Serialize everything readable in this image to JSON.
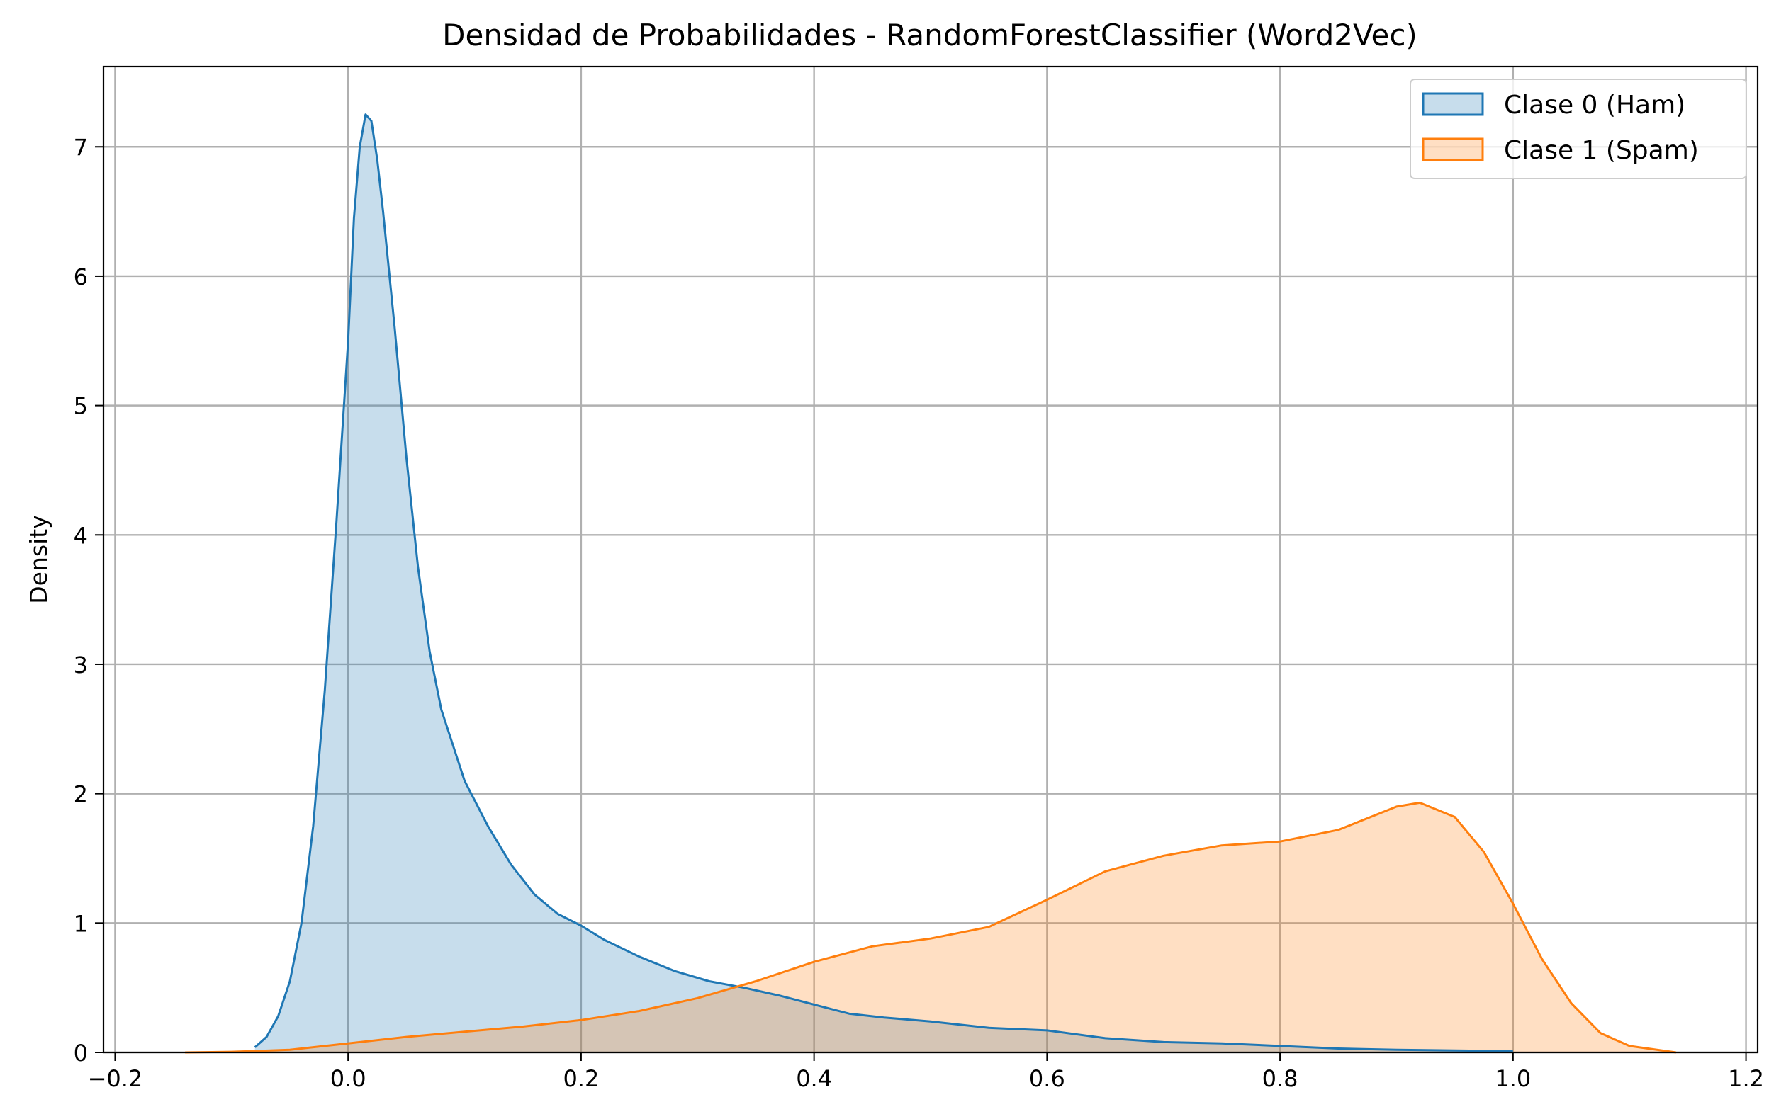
{
  "chart_data": {
    "type": "area",
    "title": "Densidad de Probabilidades - RandomForestClassifier (Word2Vec)",
    "xlabel": "",
    "ylabel": "Density",
    "xlim": [
      -0.21,
      1.21
    ],
    "ylim": [
      0,
      7.62
    ],
    "x_ticks": [
      -0.2,
      0.0,
      0.2,
      0.4,
      0.6,
      0.8,
      1.0,
      1.2
    ],
    "x_tick_labels": [
      "−0.2",
      "0.0",
      "0.2",
      "0.4",
      "0.6",
      "0.8",
      "1.0",
      "1.2"
    ],
    "y_ticks": [
      0,
      1,
      2,
      3,
      4,
      5,
      6,
      7
    ],
    "y_tick_labels": [
      "0",
      "1",
      "2",
      "3",
      "4",
      "5",
      "6",
      "7"
    ],
    "grid": true,
    "legend_position": "top-right",
    "series": [
      {
        "name": "Clase 0 (Ham)",
        "color": "#1f77b4",
        "fill": "#1f77b4",
        "points": [
          [
            -0.08,
            0.04
          ],
          [
            -0.07,
            0.12
          ],
          [
            -0.06,
            0.28
          ],
          [
            -0.05,
            0.55
          ],
          [
            -0.04,
            1.0
          ],
          [
            -0.03,
            1.75
          ],
          [
            -0.02,
            2.8
          ],
          [
            -0.01,
            4.1
          ],
          [
            0.0,
            5.5
          ],
          [
            0.005,
            6.45
          ],
          [
            0.01,
            7.0
          ],
          [
            0.015,
            7.25
          ],
          [
            0.02,
            7.2
          ],
          [
            0.025,
            6.9
          ],
          [
            0.03,
            6.5
          ],
          [
            0.04,
            5.6
          ],
          [
            0.05,
            4.6
          ],
          [
            0.06,
            3.75
          ],
          [
            0.07,
            3.1
          ],
          [
            0.08,
            2.65
          ],
          [
            0.1,
            2.1
          ],
          [
            0.12,
            1.75
          ],
          [
            0.14,
            1.45
          ],
          [
            0.16,
            1.22
          ],
          [
            0.18,
            1.07
          ],
          [
            0.2,
            0.98
          ],
          [
            0.22,
            0.87
          ],
          [
            0.25,
            0.74
          ],
          [
            0.28,
            0.63
          ],
          [
            0.31,
            0.55
          ],
          [
            0.34,
            0.5
          ],
          [
            0.37,
            0.44
          ],
          [
            0.4,
            0.37
          ],
          [
            0.43,
            0.3
          ],
          [
            0.46,
            0.27
          ],
          [
            0.5,
            0.24
          ],
          [
            0.55,
            0.19
          ],
          [
            0.6,
            0.17
          ],
          [
            0.65,
            0.11
          ],
          [
            0.7,
            0.08
          ],
          [
            0.75,
            0.07
          ],
          [
            0.8,
            0.05
          ],
          [
            0.85,
            0.03
          ],
          [
            0.9,
            0.02
          ],
          [
            0.95,
            0.015
          ],
          [
            1.0,
            0.01
          ]
        ]
      },
      {
        "name": "Clase 1 (Spam)",
        "color": "#ff7f0e",
        "fill": "#ff7f0e",
        "points": [
          [
            -0.14,
            0.0
          ],
          [
            -0.1,
            0.005
          ],
          [
            -0.05,
            0.02
          ],
          [
            0.0,
            0.07
          ],
          [
            0.05,
            0.12
          ],
          [
            0.1,
            0.16
          ],
          [
            0.15,
            0.2
          ],
          [
            0.2,
            0.25
          ],
          [
            0.25,
            0.32
          ],
          [
            0.3,
            0.42
          ],
          [
            0.35,
            0.55
          ],
          [
            0.4,
            0.7
          ],
          [
            0.45,
            0.82
          ],
          [
            0.5,
            0.88
          ],
          [
            0.55,
            0.97
          ],
          [
            0.6,
            1.18
          ],
          [
            0.65,
            1.4
          ],
          [
            0.7,
            1.52
          ],
          [
            0.75,
            1.6
          ],
          [
            0.8,
            1.63
          ],
          [
            0.85,
            1.72
          ],
          [
            0.9,
            1.9
          ],
          [
            0.92,
            1.93
          ],
          [
            0.95,
            1.82
          ],
          [
            0.975,
            1.55
          ],
          [
            1.0,
            1.15
          ],
          [
            1.025,
            0.72
          ],
          [
            1.05,
            0.38
          ],
          [
            1.075,
            0.15
          ],
          [
            1.1,
            0.05
          ],
          [
            1.14,
            0.0
          ]
        ]
      }
    ]
  }
}
